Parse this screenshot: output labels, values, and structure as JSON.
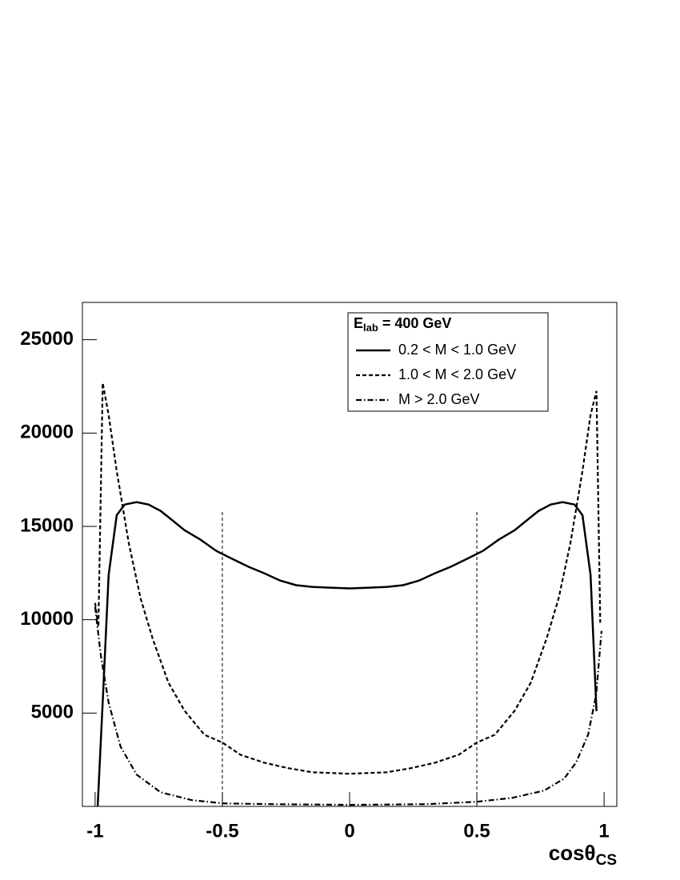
{
  "chart_data": {
    "type": "line",
    "xlim": [
      -1.05,
      1.05
    ],
    "ylim": [
      0,
      27000
    ],
    "xticks": [
      -1,
      -0.5,
      0,
      0.5,
      1
    ],
    "yticks": [
      5000,
      10000,
      15000,
      20000,
      25000
    ],
    "x_label": {
      "main": "cosθ",
      "sub": "CS"
    },
    "legend_title": {
      "main": "E",
      "sub": "lab",
      "rest": " = 400 GeV"
    },
    "vlines": {
      "x": [
        -0.5,
        0.5
      ],
      "top": 15800
    },
    "series": [
      {
        "name": "0.2 < M < 1.0 GeV",
        "color": "#000000",
        "dash": "solid",
        "x": [
          -0.99,
          -0.969,
          -0.947,
          -0.915,
          -0.884,
          -0.837,
          -0.79,
          -0.743,
          -0.696,
          -0.649,
          -0.586,
          -0.524,
          -0.461,
          -0.398,
          -0.335,
          -0.273,
          -0.21,
          -0.147,
          -0.085,
          0,
          0.085,
          0.147,
          0.21,
          0.273,
          0.335,
          0.398,
          0.461,
          0.524,
          0.586,
          0.649,
          0.696,
          0.743,
          0.79,
          0.837,
          0.884,
          0.915,
          0.947,
          0.97
        ],
        "values": [
          0,
          5980,
          12400,
          15600,
          16170,
          16300,
          16170,
          15830,
          15320,
          14800,
          14290,
          13690,
          13260,
          12840,
          12490,
          12100,
          11850,
          11760,
          11720,
          11680,
          11720,
          11760,
          11850,
          12100,
          12490,
          12840,
          13260,
          13690,
          14290,
          14800,
          15320,
          15830,
          16170,
          16300,
          16170,
          15600,
          12400,
          5100
        ]
      },
      {
        "name": "1.0 < M < 2.0 GeV",
        "color": "#000000",
        "dash": "dashed",
        "x": [
          -1,
          -0.987,
          -0.97,
          -0.947,
          -0.915,
          -0.868,
          -0.821,
          -0.774,
          -0.712,
          -0.649,
          -0.571,
          -0.5,
          -0.429,
          -0.335,
          -0.241,
          -0.147,
          0,
          0.147,
          0.241,
          0.335,
          0.429,
          0.5,
          0.571,
          0.649,
          0.712,
          0.774,
          0.821,
          0.868,
          0.915,
          0.947,
          0.97,
          0.985
        ],
        "values": [
          10900,
          9620,
          22680,
          20970,
          17970,
          14120,
          11130,
          8990,
          6630,
          5130,
          3840,
          3420,
          2770,
          2340,
          2050,
          1830,
          1750,
          1830,
          2050,
          2340,
          2770,
          3420,
          3840,
          5130,
          6630,
          8990,
          11130,
          14120,
          17970,
          20970,
          22250,
          9840
        ]
      },
      {
        "name": "M > 2.0 GeV",
        "color": "#000000",
        "dash": "dashdot",
        "x": [
          -1,
          -0.978,
          -0.947,
          -0.9,
          -0.837,
          -0.743,
          -0.618,
          -0.492,
          -0.304,
          0,
          0.304,
          0.5,
          0.64,
          0.765,
          0.843,
          0.89,
          0.937,
          0.969,
          0.99
        ],
        "values": [
          10690,
          8130,
          5560,
          3200,
          1700,
          760,
          330,
          160,
          120,
          80,
          120,
          250,
          460,
          850,
          1490,
          2350,
          3840,
          5980,
          9400
        ]
      }
    ]
  }
}
